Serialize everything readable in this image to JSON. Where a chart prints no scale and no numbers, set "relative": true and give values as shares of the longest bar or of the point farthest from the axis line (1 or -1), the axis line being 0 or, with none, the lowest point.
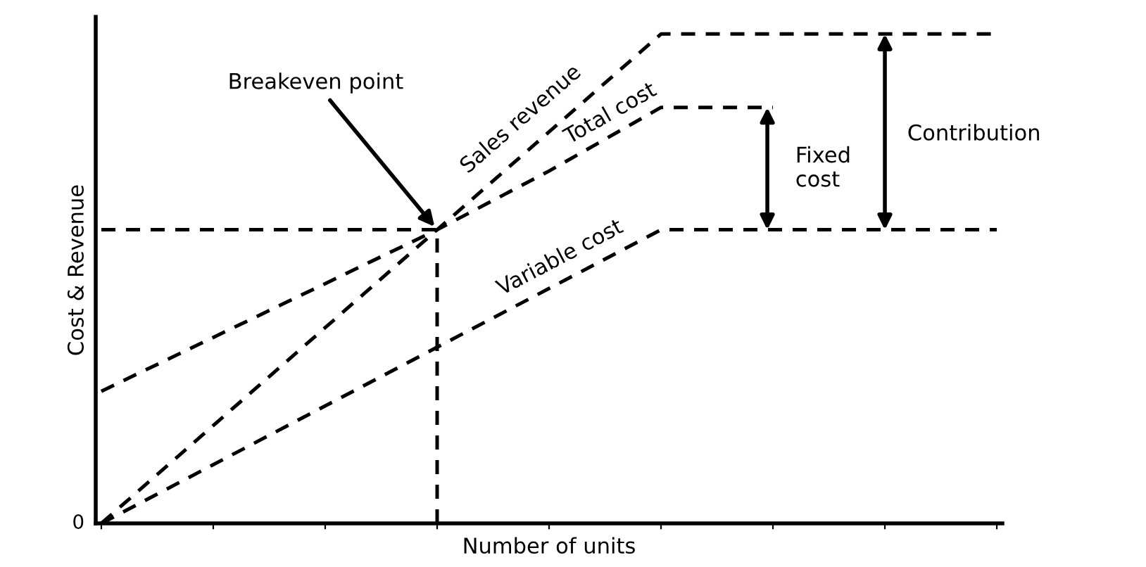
{
  "chart_data": {
    "type": "line",
    "relative": true,
    "xlabel": "Number of units",
    "ylabel": "Cost & Revenue",
    "categories": [
      null,
      null,
      null,
      null,
      null,
      null,
      null,
      null,
      null
    ],
    "series": [
      {
        "name": "Sales revenue",
        "color": "#000000",
        "values": [
          0,
          0.2,
          0.4,
          0.6,
          0.8,
          1,
          1,
          1,
          1
        ]
      },
      {
        "name": "Total cost",
        "color": "#000000",
        "values": [
          0.27,
          0.38,
          0.49,
          0.6,
          0.72,
          0.85,
          0.85,
          null,
          null
        ]
      },
      {
        "name": "Variable cost",
        "color": "#000000",
        "values": [
          0,
          0.12,
          0.24,
          0.36,
          0.48,
          0.6,
          0.6,
          0.6,
          0.6
        ]
      }
    ],
    "annotations": [
      "Breakeven point",
      "Fixed\ncost",
      "Contribution",
      "0"
    ],
    "line_style": "dashed",
    "marker": "none",
    "grid": false,
    "tick_labels": false
  }
}
